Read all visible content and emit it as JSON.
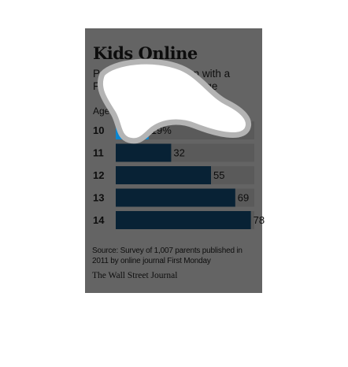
{
  "chart_data": {
    "type": "bar",
    "orientation": "horizontal",
    "title": "Kids Online",
    "subtitle": "Percentage of children with a Facebook account, by age",
    "category_axis_label": "Age",
    "categories": [
      "10",
      "11",
      "12",
      "13",
      "14"
    ],
    "values": [
      19,
      32,
      55,
      69,
      78
    ],
    "value_labels": [
      "19%",
      "32",
      "55",
      "69",
      "78"
    ],
    "xlim": [
      0,
      100
    ],
    "highlight_category": "10",
    "colors": {
      "bar": "#082235",
      "bar_highlight": "#0a86d0",
      "track": "#5a5a5a",
      "card": "#646464"
    },
    "grid": false,
    "legend": "none"
  },
  "source": "Source: Survey of 1,007 parents published in 2011 by online journal First Monday",
  "publisher": "The Wall Street Journal"
}
